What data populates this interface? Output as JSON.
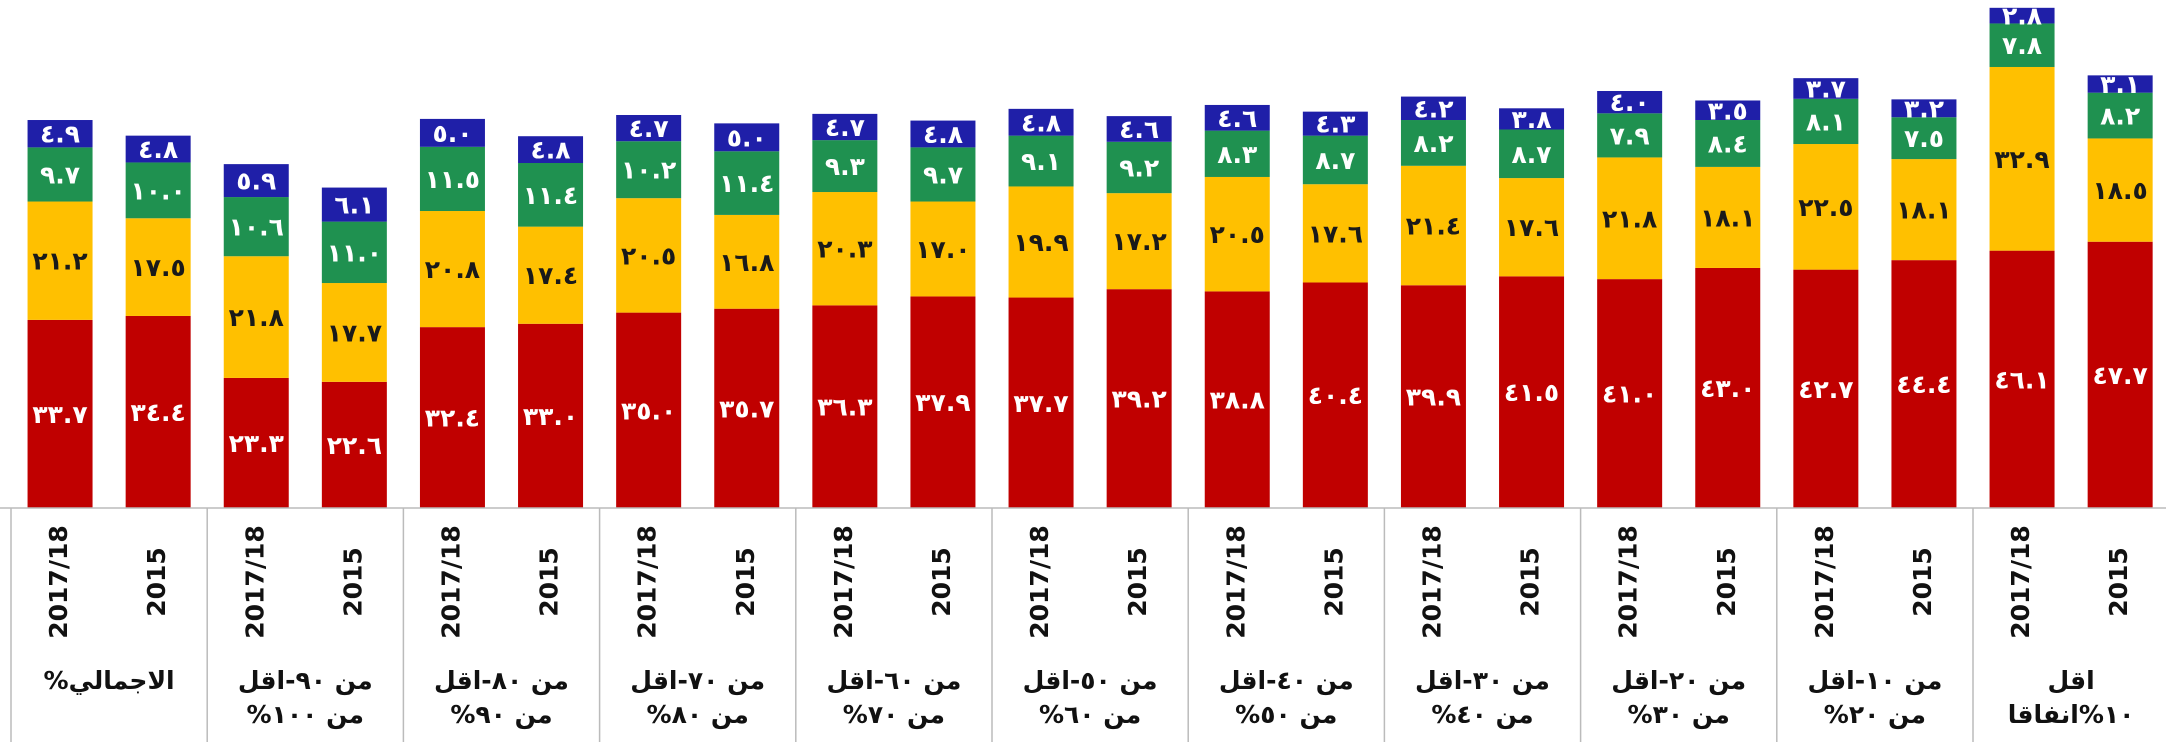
{
  "chart_data": {
    "type": "stacked-bar",
    "categories": [
      "2017/18",
      "2015",
      "2017/18",
      "2015",
      "2017/18",
      "2015",
      "2017/18",
      "2015",
      "2017/18",
      "2015",
      "2017/18",
      "2015",
      "2017/18",
      "2015",
      "2017/18",
      "2015",
      "2017/18",
      "2015",
      "2017/18",
      "2015",
      "2017/18",
      "2015"
    ],
    "groups": [
      "الاجمالي%",
      "من ٩٠-اقل من ١٠٠%",
      "من ٨٠-اقل من ٩٠%",
      "من ٧٠-اقل من ٨٠%",
      "من ٦٠-اقل من ٧٠%",
      "من ٥٠-اقل من ٦٠%",
      "من ٤٠-اقل من ٥٠%",
      "من ٣٠-اقل من ٤٠%",
      "من ٢٠-اقل من ٣٠%",
      "من ١٠-اقل من ٢٠%",
      "اقل ١٠%انفاقا"
    ],
    "ylim": [
      0,
      91
    ],
    "series": [
      {
        "color": "#c00000",
        "label_color": "#ffffff",
        "values": [
          33.7,
          34.4,
          23.3,
          22.6,
          32.4,
          33.0,
          35.0,
          35.7,
          36.3,
          37.9,
          37.7,
          39.2,
          38.8,
          40.4,
          39.9,
          41.5,
          41.0,
          43.0,
          42.7,
          44.4,
          46.1,
          47.7
        ],
        "value_labels": [
          "٣٣.٧",
          "٣٤.٤",
          "٢٣.٣",
          "٢٢.٦",
          "٣٢.٤",
          "٣٣.٠",
          "٣٥.٠",
          "٣٥.٧",
          "٣٦.٣",
          "٣٧.٩",
          "٣٧.٧",
          "٣٩.٢",
          "٣٨.٨",
          "٤٠.٤",
          "٣٩.٩",
          "٤١.٥",
          "٤١.٠",
          "٤٣.٠",
          "٤٢.٧",
          "٤٤.٤",
          "٤٦.١",
          "٤٧.٧"
        ]
      },
      {
        "color": "#ffc000",
        "label_color": "#1a1a1a",
        "values": [
          21.2,
          17.5,
          21.8,
          17.7,
          20.8,
          17.4,
          20.5,
          16.8,
          20.3,
          17.0,
          19.9,
          17.2,
          20.5,
          17.6,
          21.4,
          17.6,
          21.8,
          18.1,
          22.5,
          18.1,
          32.9,
          18.5
        ],
        "value_labels": [
          "٢١.٢",
          "١٧.٥",
          "٢١.٨",
          "١٧.٧",
          "٢٠.٨",
          "١٧.٤",
          "٢٠.٥",
          "١٦.٨",
          "٢٠.٣",
          "١٧.٠",
          "١٩.٩",
          "١٧.٢",
          "٢٠.٥",
          "١٧.٦",
          "٢١.٤",
          "١٧.٦",
          "٢١.٨",
          "١٨.١",
          "٢٢.٥",
          "١٨.١",
          "٣٢.٩",
          "١٨.٥"
        ]
      },
      {
        "color": "#1f9150",
        "label_color": "#ffffff",
        "values": [
          9.7,
          10.0,
          10.6,
          11.0,
          11.5,
          11.4,
          10.2,
          11.4,
          9.3,
          9.7,
          9.1,
          9.2,
          8.3,
          8.7,
          8.2,
          8.7,
          7.9,
          8.4,
          8.1,
          7.5,
          7.8,
          8.2
        ],
        "value_labels": [
          "٩.٧",
          "١٠.٠",
          "١٠.٦",
          "١١.٠",
          "١١.٥",
          "١١.٤",
          "١٠.٢",
          "١١.٤",
          "٩.٣",
          "٩.٧",
          "٩.١",
          "٩.٢",
          "٨.٣",
          "٨.٧",
          "٨.٢",
          "٨.٧",
          "٧.٩",
          "٨.٤",
          "٨.١",
          "٧.٥",
          "٧.٨",
          "٨.٢"
        ]
      },
      {
        "color": "#1f1fa8",
        "label_color": "#ffffff",
        "values": [
          4.9,
          4.8,
          5.9,
          6.1,
          5.0,
          4.8,
          4.7,
          5.0,
          4.7,
          4.8,
          4.8,
          4.6,
          4.6,
          4.3,
          4.2,
          3.8,
          4.0,
          3.5,
          3.7,
          3.2,
          2.8,
          3.1
        ],
        "value_labels": [
          "٤.٩",
          "٤.٨",
          "٥.٩",
          "٦.١",
          "٥.٠",
          "٤.٨",
          "٤.٧",
          "٥.٠",
          "٤.٧",
          "٤.٨",
          "٤.٨",
          "٤.٦",
          "٤.٦",
          "٤.٣",
          "٤.٢",
          "٣.٨",
          "٤.٠",
          "٣.٥",
          "٣.٧",
          "٣.٢",
          "٢.٨",
          "٣.١"
        ]
      }
    ]
  }
}
